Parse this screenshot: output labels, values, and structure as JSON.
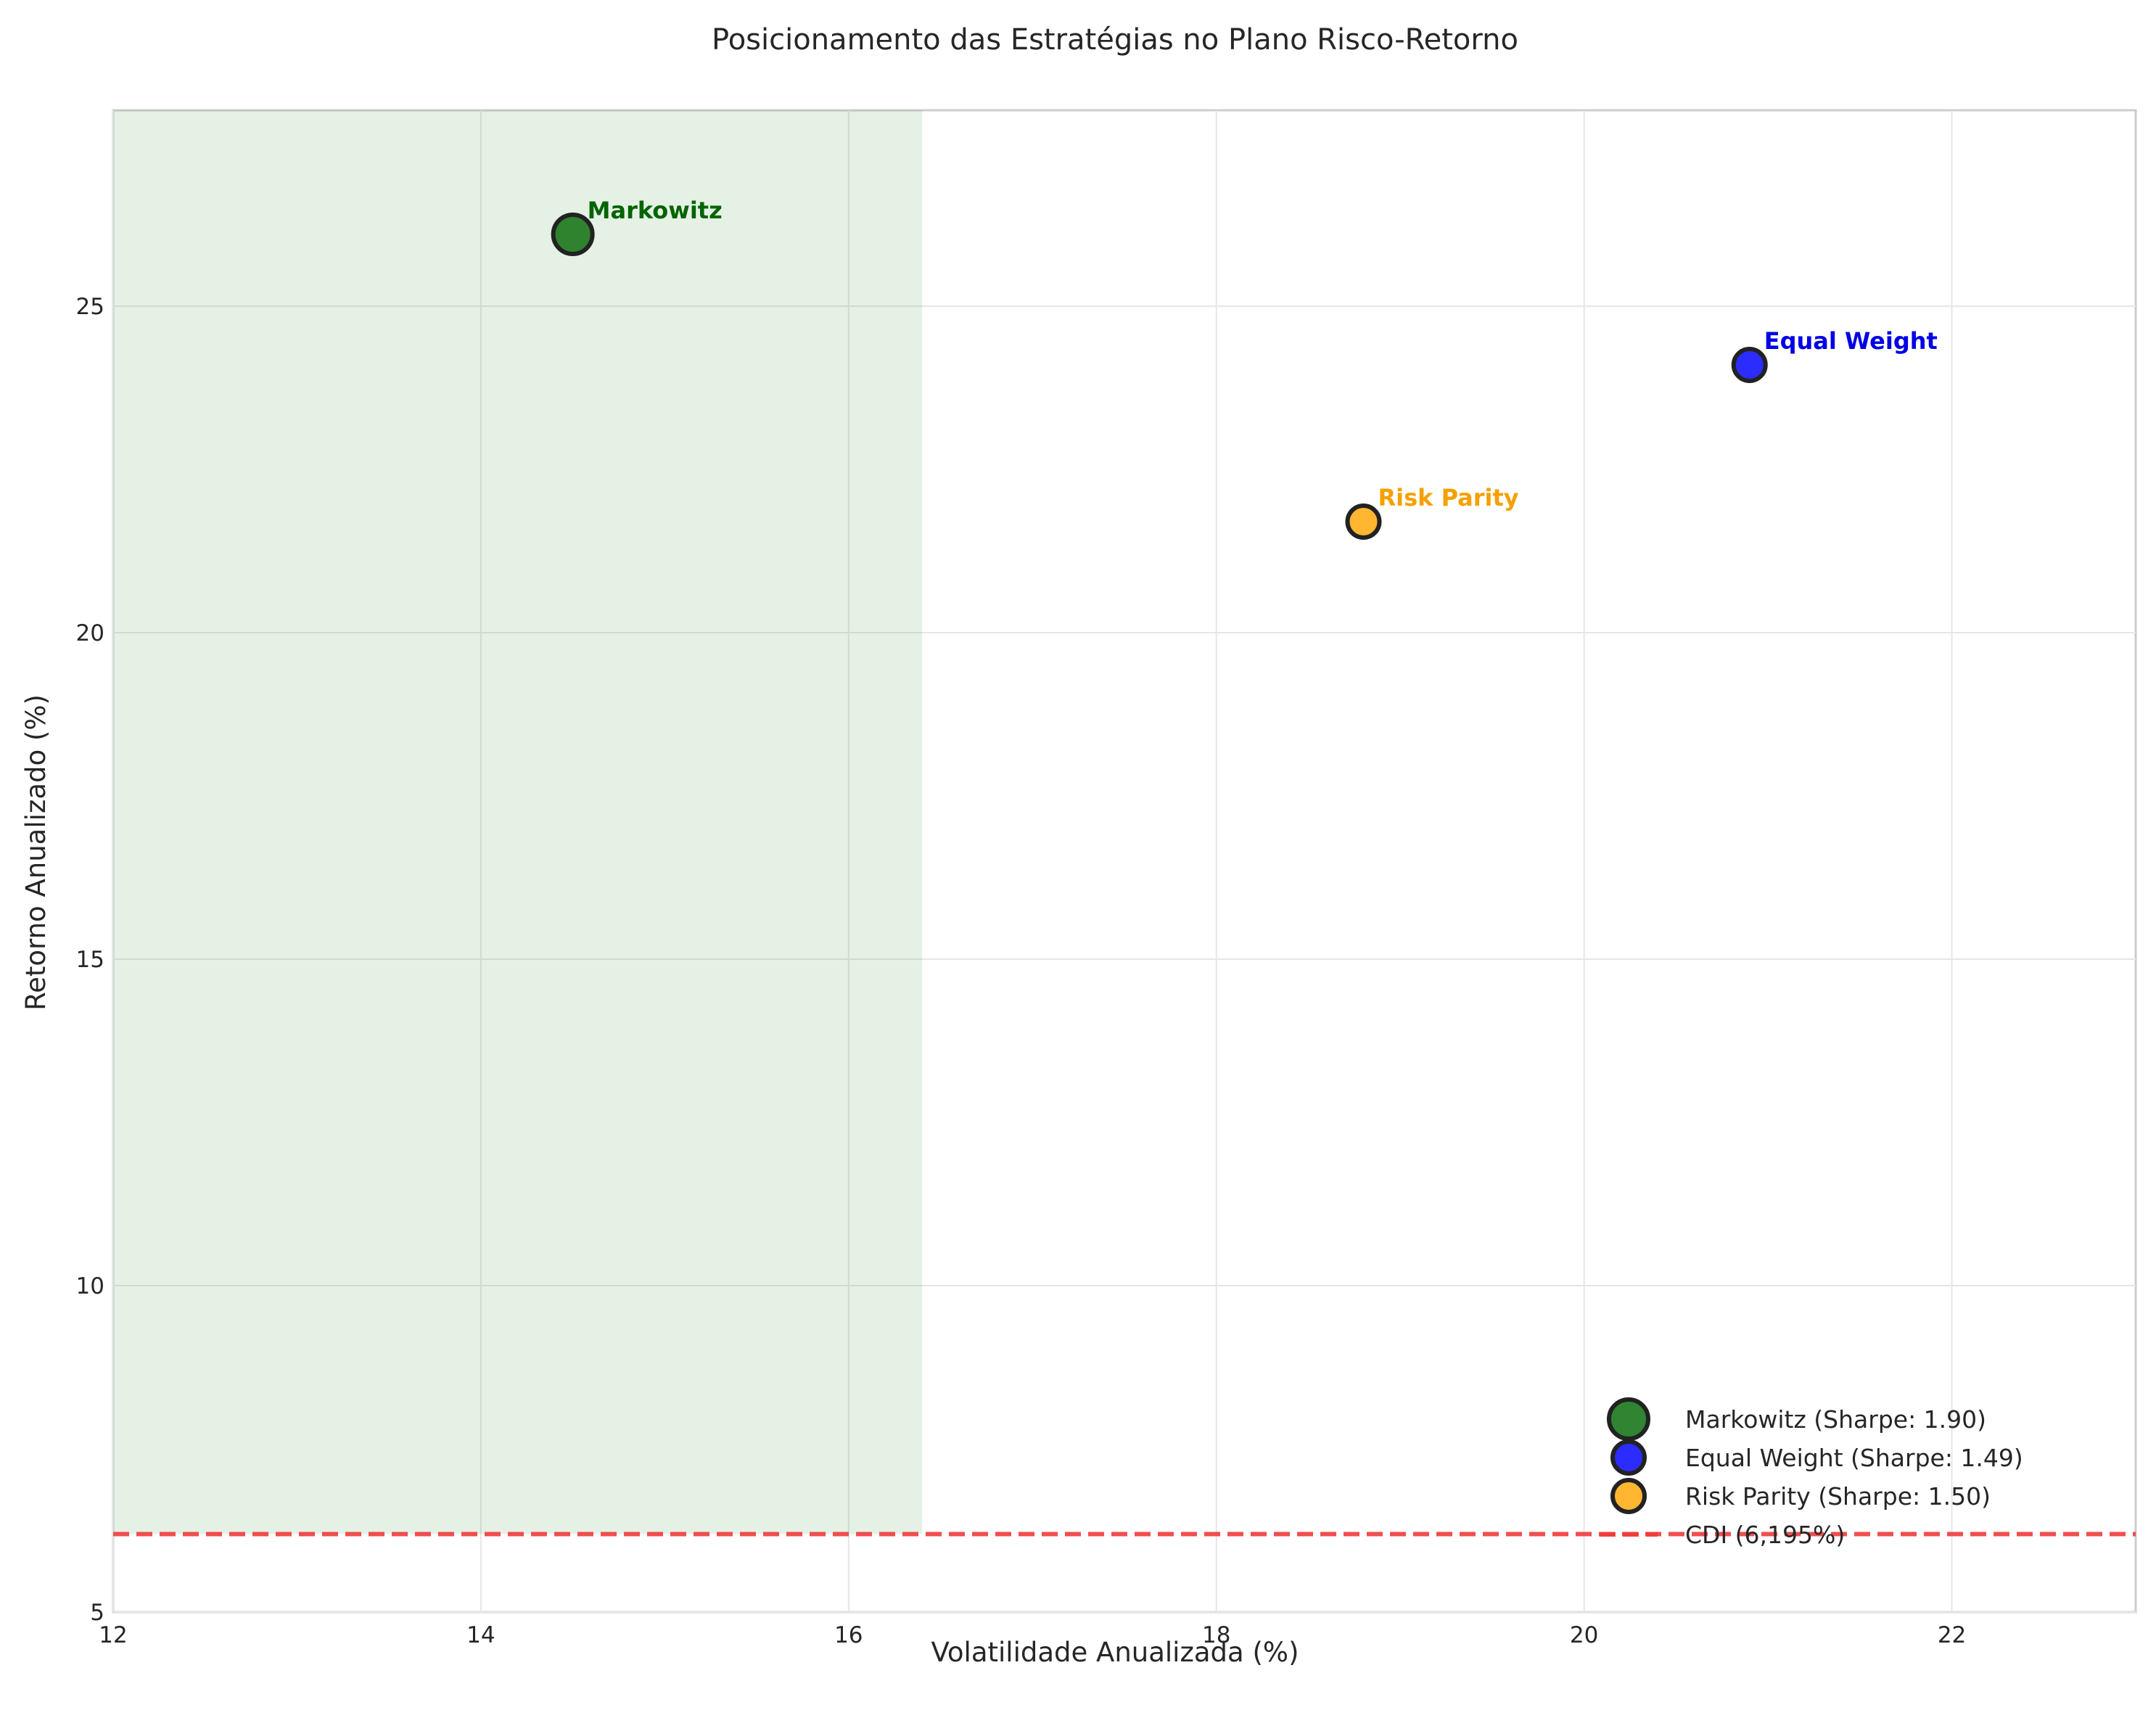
{
  "chart_data": {
    "type": "scatter",
    "title": "Posicionamento das Estratégias no Plano Risco-Retorno",
    "xlabel": "Volatilidade Anualizada (%)",
    "ylabel": "Retorno Anualizado (%)",
    "xlim": [
      12,
      23
    ],
    "ylim": [
      5,
      28
    ],
    "xticks": [
      12,
      14,
      16,
      18,
      20,
      22
    ],
    "yticks": [
      5,
      10,
      15,
      20,
      25
    ],
    "xtick_labels": [
      "12",
      "14",
      "16",
      "18",
      "20",
      "22"
    ],
    "ytick_labels": [
      "5",
      "10",
      "15",
      "20",
      "25"
    ],
    "grid": true,
    "legend_position": "lower-right",
    "shaded_region": {
      "x_range": [
        12,
        16.4
      ],
      "y_range": [
        6.195,
        28
      ],
      "color": "#2e8b2e"
    },
    "series": [
      {
        "name": "Markowitz (Sharpe: 1.90)",
        "label": "Markowitz",
        "x": 14.5,
        "y": 26.1,
        "color": "#1f7a1f",
        "label_color": "#006400",
        "size": "large"
      },
      {
        "name": "Equal Weight (Sharpe: 1.49)",
        "label": "Equal Weight",
        "x": 20.9,
        "y": 24.1,
        "color": "#1a1aff",
        "label_color": "#0000e6",
        "size": "small"
      },
      {
        "name": "Risk Parity (Sharpe: 1.50)",
        "label": "Risk Parity",
        "x": 18.8,
        "y": 21.7,
        "color": "#ffb01f",
        "label_color": "#f5a000",
        "size": "small"
      }
    ],
    "reference_line": {
      "name": "CDI (6,195%)",
      "y": 6.195,
      "color": "#ee3b3b",
      "style": "dashed"
    }
  }
}
